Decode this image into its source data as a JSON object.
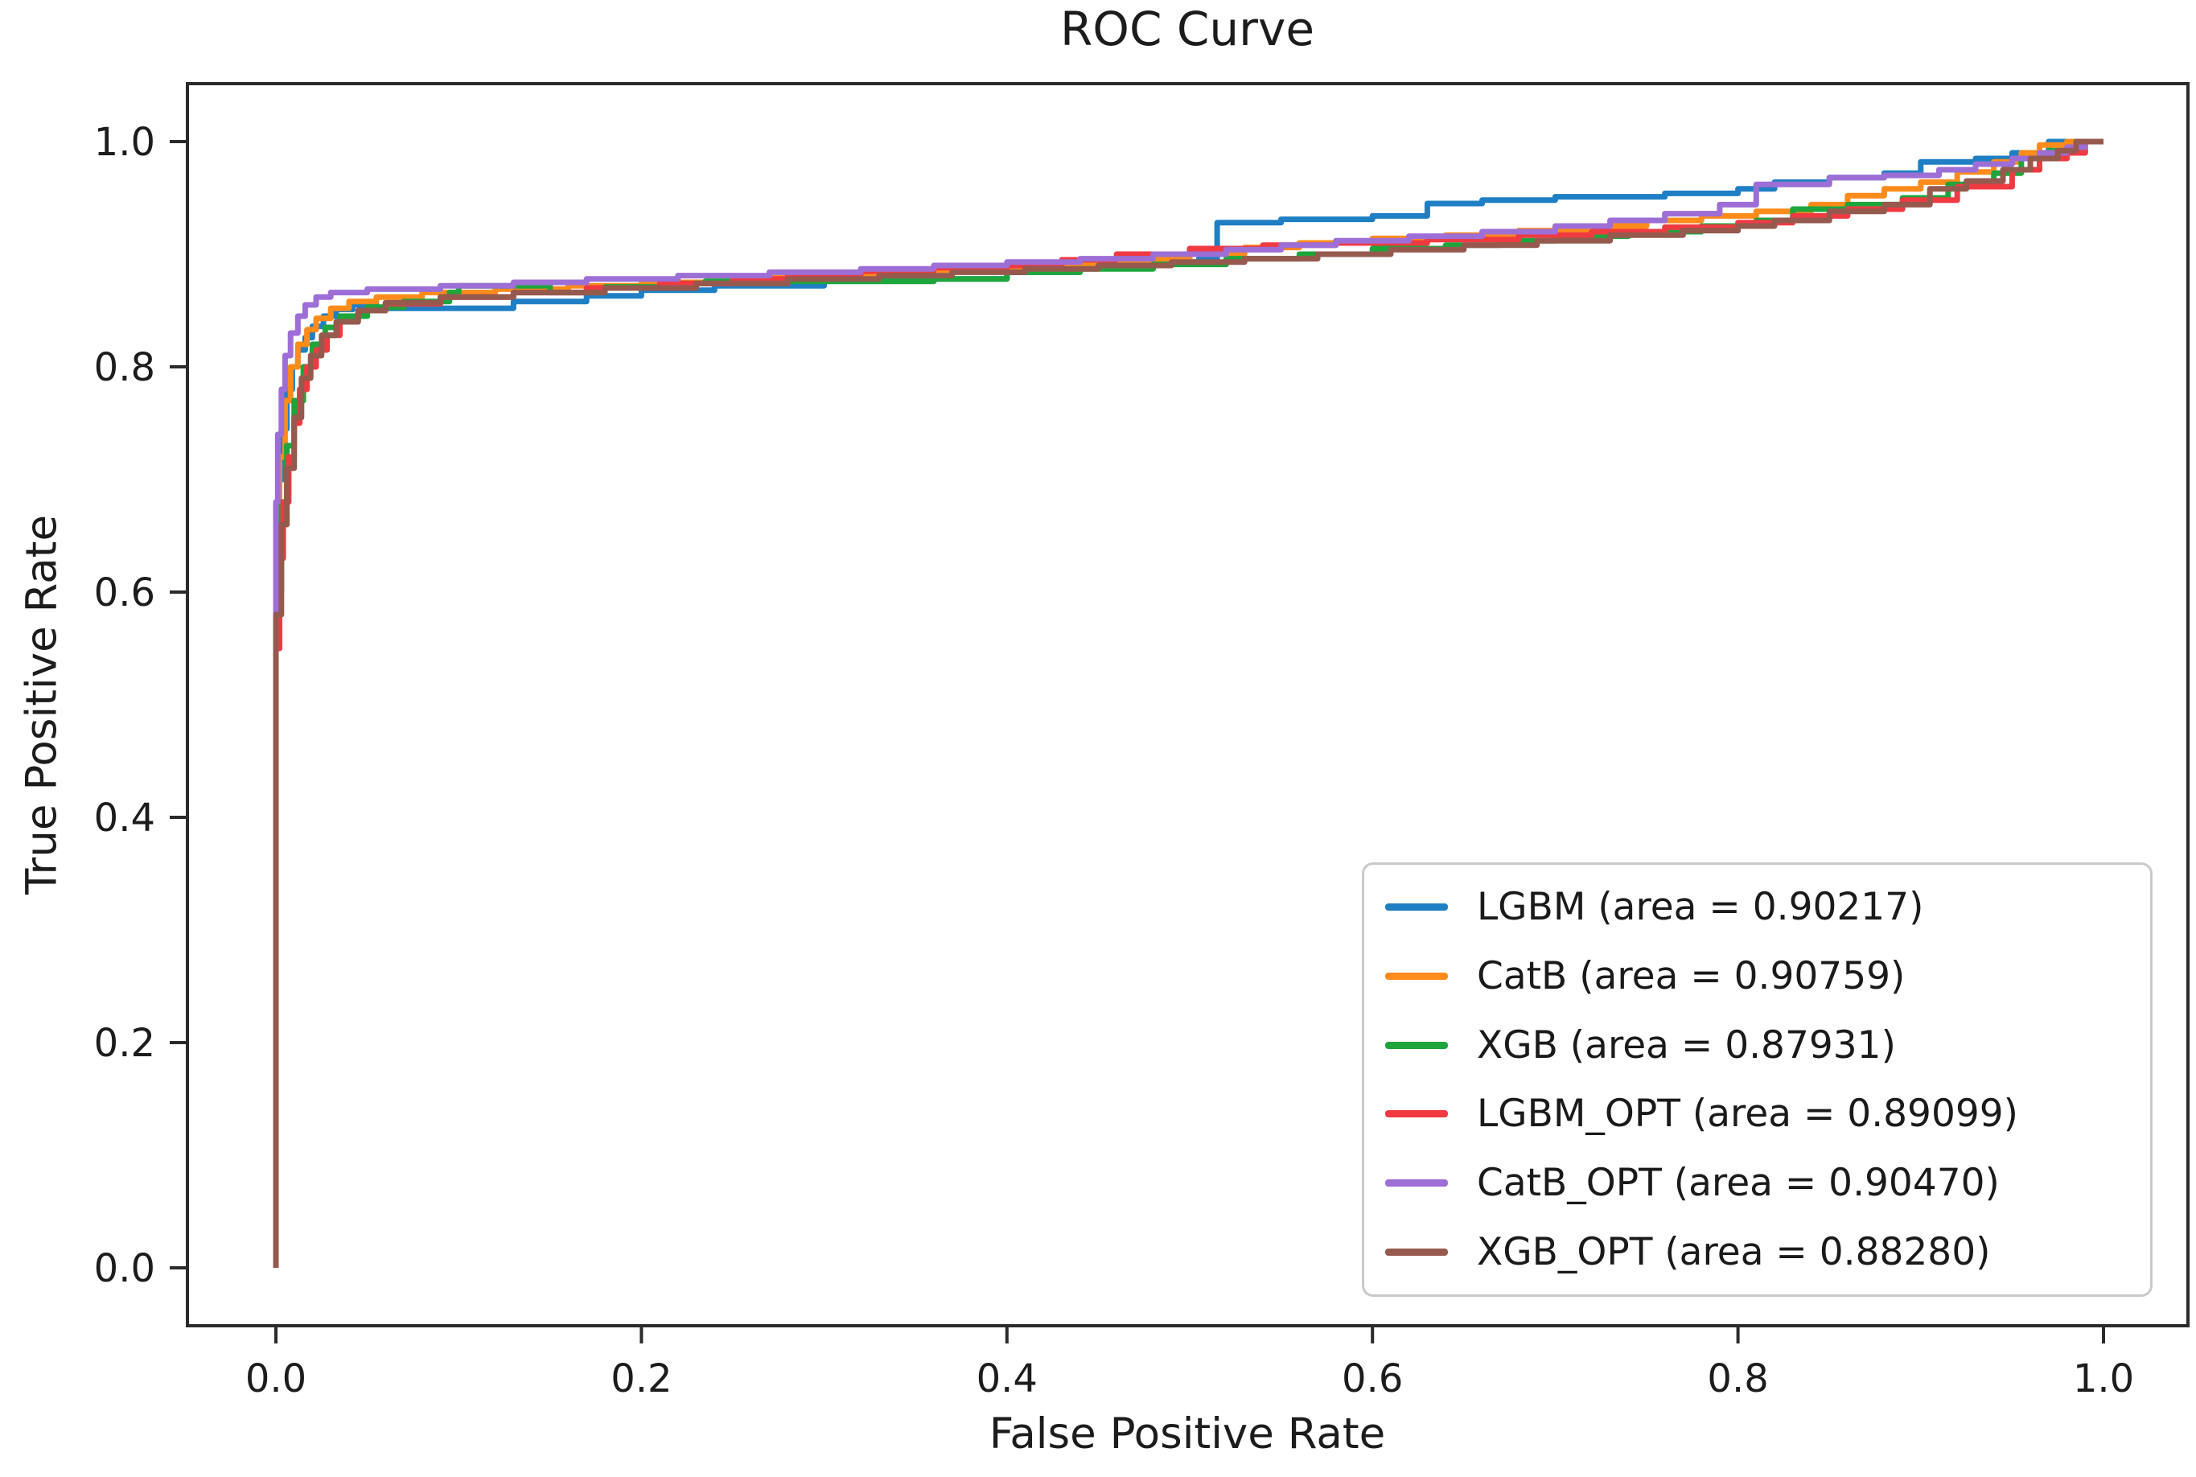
{
  "chart_data": {
    "type": "line",
    "curve_style": "step",
    "title": "ROC Curve",
    "xlabel": "False Positive Rate",
    "ylabel": "True Positive Rate",
    "xlim": [
      -0.048,
      1.046
    ],
    "ylim": [
      -0.051,
      1.051
    ],
    "grid": false,
    "legend_position": "lower right",
    "x_tick_labels": [
      "0.0",
      "0.2",
      "0.4",
      "0.6",
      "0.8",
      "1.0"
    ],
    "y_tick_labels": [
      "0.0",
      "0.2",
      "0.4",
      "0.6",
      "0.8",
      "1.0"
    ],
    "x_ticks": [
      0.0,
      0.2,
      0.4,
      0.6,
      0.8,
      1.0
    ],
    "y_ticks": [
      0.0,
      0.2,
      0.4,
      0.6,
      0.8,
      1.0
    ],
    "series": [
      {
        "name": "LGBM",
        "label": "LGBM (area = 0.90217)",
        "auc": 0.90217,
        "color": "#1f7fc4",
        "points": [
          [
            0,
            0
          ],
          [
            0,
            0.62
          ],
          [
            0.002,
            0.7
          ],
          [
            0.004,
            0.745
          ],
          [
            0.006,
            0.78
          ],
          [
            0.009,
            0.8
          ],
          [
            0.012,
            0.815
          ],
          [
            0.016,
            0.826
          ],
          [
            0.02,
            0.836
          ],
          [
            0.026,
            0.845
          ],
          [
            0.033,
            0.851
          ],
          [
            0.042,
            0.855
          ],
          [
            0.055,
            0.852
          ],
          [
            0.08,
            0.852
          ],
          [
            0.13,
            0.858
          ],
          [
            0.17,
            0.863
          ],
          [
            0.2,
            0.868
          ],
          [
            0.24,
            0.872
          ],
          [
            0.3,
            0.876
          ],
          [
            0.36,
            0.878
          ],
          [
            0.4,
            0.884
          ],
          [
            0.44,
            0.888
          ],
          [
            0.47,
            0.893
          ],
          [
            0.505,
            0.896
          ],
          [
            0.515,
            0.928
          ],
          [
            0.55,
            0.931
          ],
          [
            0.6,
            0.934
          ],
          [
            0.63,
            0.945
          ],
          [
            0.66,
            0.948
          ],
          [
            0.7,
            0.951
          ],
          [
            0.76,
            0.954
          ],
          [
            0.8,
            0.958
          ],
          [
            0.82,
            0.964
          ],
          [
            0.85,
            0.968
          ],
          [
            0.88,
            0.972
          ],
          [
            0.9,
            0.982
          ],
          [
            0.93,
            0.985
          ],
          [
            0.95,
            0.99
          ],
          [
            0.97,
            1.0
          ],
          [
            1,
            1.0
          ]
        ]
      },
      {
        "name": "CatB",
        "label": "CatB (area = 0.90759)",
        "auc": 0.90759,
        "color": "#ff8b1a",
        "points": [
          [
            0,
            0
          ],
          [
            0,
            0.65
          ],
          [
            0.002,
            0.72
          ],
          [
            0.005,
            0.77
          ],
          [
            0.008,
            0.8
          ],
          [
            0.012,
            0.82
          ],
          [
            0.017,
            0.833
          ],
          [
            0.022,
            0.843
          ],
          [
            0.03,
            0.852
          ],
          [
            0.04,
            0.858
          ],
          [
            0.055,
            0.862
          ],
          [
            0.08,
            0.866
          ],
          [
            0.12,
            0.869
          ],
          [
            0.16,
            0.872
          ],
          [
            0.2,
            0.875
          ],
          [
            0.25,
            0.879
          ],
          [
            0.3,
            0.882
          ],
          [
            0.34,
            0.886
          ],
          [
            0.38,
            0.888
          ],
          [
            0.42,
            0.891
          ],
          [
            0.46,
            0.895
          ],
          [
            0.5,
            0.9
          ],
          [
            0.53,
            0.906
          ],
          [
            0.56,
            0.91
          ],
          [
            0.6,
            0.914
          ],
          [
            0.64,
            0.917
          ],
          [
            0.68,
            0.921
          ],
          [
            0.72,
            0.925
          ],
          [
            0.75,
            0.93
          ],
          [
            0.78,
            0.934
          ],
          [
            0.81,
            0.938
          ],
          [
            0.84,
            0.944
          ],
          [
            0.86,
            0.952
          ],
          [
            0.88,
            0.958
          ],
          [
            0.9,
            0.964
          ],
          [
            0.92,
            0.973
          ],
          [
            0.94,
            0.982
          ],
          [
            0.955,
            0.99
          ],
          [
            0.965,
            0.997
          ],
          [
            0.98,
            1.0
          ],
          [
            1,
            1.0
          ]
        ]
      },
      {
        "name": "XGB",
        "label": "XGB (area = 0.87931)",
        "auc": 0.87931,
        "color": "#1ea53c",
        "points": [
          [
            0,
            0
          ],
          [
            0,
            0.6
          ],
          [
            0.003,
            0.68
          ],
          [
            0.006,
            0.73
          ],
          [
            0.01,
            0.77
          ],
          [
            0.015,
            0.8
          ],
          [
            0.02,
            0.82
          ],
          [
            0.027,
            0.835
          ],
          [
            0.035,
            0.845
          ],
          [
            0.05,
            0.853
          ],
          [
            0.07,
            0.858
          ],
          [
            0.095,
            0.866
          ],
          [
            0.1,
            0.872
          ],
          [
            0.13,
            0.872
          ],
          [
            0.15,
            0.866
          ],
          [
            0.18,
            0.871
          ],
          [
            0.22,
            0.874
          ],
          [
            0.235,
            0.876
          ],
          [
            0.36,
            0.878
          ],
          [
            0.4,
            0.884
          ],
          [
            0.44,
            0.887
          ],
          [
            0.48,
            0.891
          ],
          [
            0.52,
            0.896
          ],
          [
            0.56,
            0.9
          ],
          [
            0.6,
            0.905
          ],
          [
            0.64,
            0.908
          ],
          [
            0.67,
            0.912
          ],
          [
            0.7,
            0.916
          ],
          [
            0.74,
            0.92
          ],
          [
            0.78,
            0.925
          ],
          [
            0.81,
            0.93
          ],
          [
            0.83,
            0.94
          ],
          [
            0.86,
            0.944
          ],
          [
            0.89,
            0.95
          ],
          [
            0.915,
            0.962
          ],
          [
            0.94,
            0.972
          ],
          [
            0.955,
            0.985
          ],
          [
            0.97,
            0.992
          ],
          [
            0.985,
            1.0
          ],
          [
            1,
            1.0
          ]
        ]
      },
      {
        "name": "LGBM_OPT",
        "label": "LGBM_OPT (area = 0.89099)",
        "auc": 0.89099,
        "color": "#ef3a42",
        "points": [
          [
            0,
            0
          ],
          [
            0,
            0.55
          ],
          [
            0.002,
            0.63
          ],
          [
            0.004,
            0.68
          ],
          [
            0.007,
            0.72
          ],
          [
            0.01,
            0.75
          ],
          [
            0.013,
            0.78
          ],
          [
            0.017,
            0.8
          ],
          [
            0.022,
            0.815
          ],
          [
            0.028,
            0.828
          ],
          [
            0.035,
            0.84
          ],
          [
            0.045,
            0.85
          ],
          [
            0.06,
            0.856
          ],
          [
            0.09,
            0.862
          ],
          [
            0.13,
            0.866
          ],
          [
            0.17,
            0.87
          ],
          [
            0.21,
            0.874
          ],
          [
            0.25,
            0.878
          ],
          [
            0.28,
            0.882
          ],
          [
            0.32,
            0.885
          ],
          [
            0.36,
            0.888
          ],
          [
            0.4,
            0.89
          ],
          [
            0.43,
            0.895
          ],
          [
            0.46,
            0.9
          ],
          [
            0.5,
            0.905
          ],
          [
            0.54,
            0.908
          ],
          [
            0.58,
            0.91
          ],
          [
            0.63,
            0.913
          ],
          [
            0.68,
            0.917
          ],
          [
            0.72,
            0.92
          ],
          [
            0.76,
            0.924
          ],
          [
            0.8,
            0.928
          ],
          [
            0.83,
            0.934
          ],
          [
            0.86,
            0.94
          ],
          [
            0.89,
            0.948
          ],
          [
            0.92,
            0.96
          ],
          [
            0.95,
            0.975
          ],
          [
            0.965,
            0.985
          ],
          [
            0.98,
            0.99
          ],
          [
            0.99,
            1.0
          ],
          [
            1,
            1.0
          ]
        ]
      },
      {
        "name": "CatB_OPT",
        "label": "CatB_OPT (area = 0.90470)",
        "auc": 0.9047,
        "color": "#9d6ed6",
        "points": [
          [
            0,
            0
          ],
          [
            0,
            0.68
          ],
          [
            0.001,
            0.74
          ],
          [
            0.003,
            0.78
          ],
          [
            0.005,
            0.81
          ],
          [
            0.008,
            0.83
          ],
          [
            0.012,
            0.845
          ],
          [
            0.016,
            0.855
          ],
          [
            0.022,
            0.862
          ],
          [
            0.03,
            0.866
          ],
          [
            0.05,
            0.869
          ],
          [
            0.09,
            0.872
          ],
          [
            0.13,
            0.875
          ],
          [
            0.17,
            0.878
          ],
          [
            0.22,
            0.881
          ],
          [
            0.27,
            0.884
          ],
          [
            0.32,
            0.887
          ],
          [
            0.36,
            0.89
          ],
          [
            0.4,
            0.893
          ],
          [
            0.44,
            0.896
          ],
          [
            0.48,
            0.9
          ],
          [
            0.52,
            0.904
          ],
          [
            0.55,
            0.908
          ],
          [
            0.58,
            0.912
          ],
          [
            0.62,
            0.916
          ],
          [
            0.66,
            0.92
          ],
          [
            0.7,
            0.925
          ],
          [
            0.73,
            0.93
          ],
          [
            0.76,
            0.936
          ],
          [
            0.79,
            0.944
          ],
          [
            0.81,
            0.962
          ],
          [
            0.85,
            0.968
          ],
          [
            0.88,
            0.97
          ],
          [
            0.91,
            0.975
          ],
          [
            0.93,
            0.98
          ],
          [
            0.95,
            0.985
          ],
          [
            0.965,
            0.99
          ],
          [
            0.98,
            0.995
          ],
          [
            0.99,
            1.0
          ],
          [
            1,
            1.0
          ]
        ]
      },
      {
        "name": "XGB_OPT",
        "label": "XGB_OPT (area = 0.88280)",
        "auc": 0.8828,
        "color": "#96594e",
        "points": [
          [
            0,
            0
          ],
          [
            0,
            0.58
          ],
          [
            0.003,
            0.66
          ],
          [
            0.006,
            0.71
          ],
          [
            0.01,
            0.755
          ],
          [
            0.014,
            0.79
          ],
          [
            0.019,
            0.81
          ],
          [
            0.025,
            0.828
          ],
          [
            0.033,
            0.84
          ],
          [
            0.045,
            0.85
          ],
          [
            0.06,
            0.857
          ],
          [
            0.09,
            0.862
          ],
          [
            0.13,
            0.866
          ],
          [
            0.18,
            0.87
          ],
          [
            0.23,
            0.874
          ],
          [
            0.28,
            0.878
          ],
          [
            0.33,
            0.881
          ],
          [
            0.37,
            0.884
          ],
          [
            0.41,
            0.887
          ],
          [
            0.45,
            0.89
          ],
          [
            0.49,
            0.893
          ],
          [
            0.53,
            0.896
          ],
          [
            0.57,
            0.9
          ],
          [
            0.61,
            0.904
          ],
          [
            0.65,
            0.908
          ],
          [
            0.69,
            0.912
          ],
          [
            0.73,
            0.917
          ],
          [
            0.77,
            0.921
          ],
          [
            0.8,
            0.925
          ],
          [
            0.82,
            0.93
          ],
          [
            0.85,
            0.938
          ],
          [
            0.88,
            0.944
          ],
          [
            0.905,
            0.958
          ],
          [
            0.925,
            0.965
          ],
          [
            0.945,
            0.975
          ],
          [
            0.96,
            0.985
          ],
          [
            0.975,
            0.992
          ],
          [
            0.985,
            1.0
          ],
          [
            1,
            1.0
          ]
        ]
      }
    ]
  }
}
